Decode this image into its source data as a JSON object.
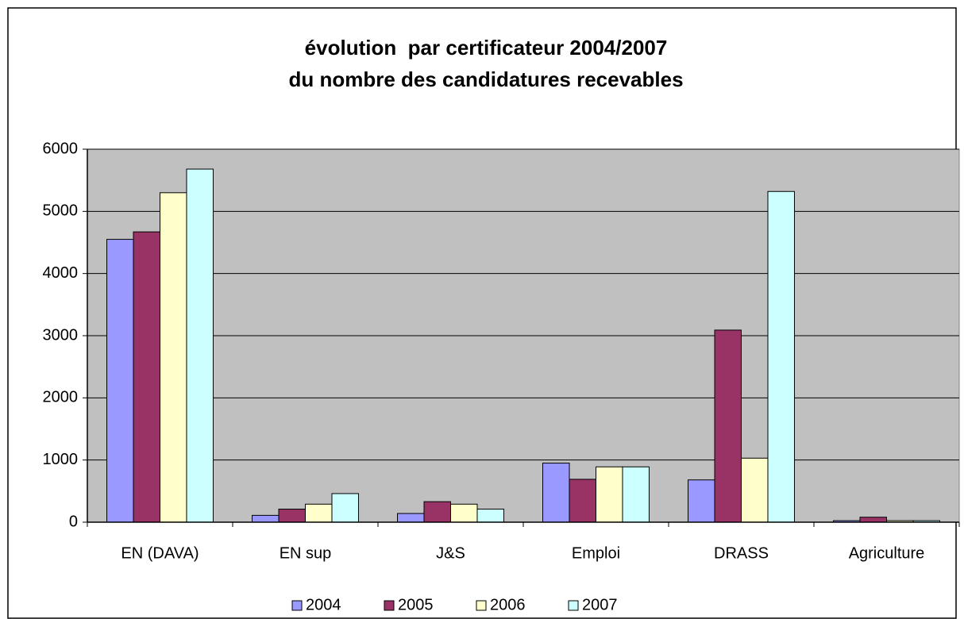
{
  "chart_data": {
    "type": "bar",
    "title": [
      "évolution  par certificateur 2004/2007",
      "du nombre des candidatures recevables"
    ],
    "categories": [
      "EN (DAVA)",
      "EN sup",
      "J&S",
      "Emploi",
      "DRASS",
      "Agriculture"
    ],
    "series": [
      {
        "name": "2004",
        "color": "#9999ff",
        "values": [
          4550,
          110,
          140,
          950,
          680,
          25
        ]
      },
      {
        "name": "2005",
        "color": "#993366",
        "values": [
          4670,
          210,
          330,
          690,
          3090,
          80
        ]
      },
      {
        "name": "2006",
        "color": "#ffffcc",
        "values": [
          5300,
          290,
          290,
          890,
          1030,
          25
        ]
      },
      {
        "name": "2007",
        "color": "#ccffff",
        "values": [
          5680,
          460,
          210,
          890,
          5320,
          25
        ]
      }
    ],
    "ylim": [
      0,
      6000
    ],
    "yticks": [
      0,
      1000,
      2000,
      3000,
      4000,
      5000,
      6000
    ],
    "grid": true,
    "plot_background": "#c0c0c0",
    "legend": "bottom"
  }
}
